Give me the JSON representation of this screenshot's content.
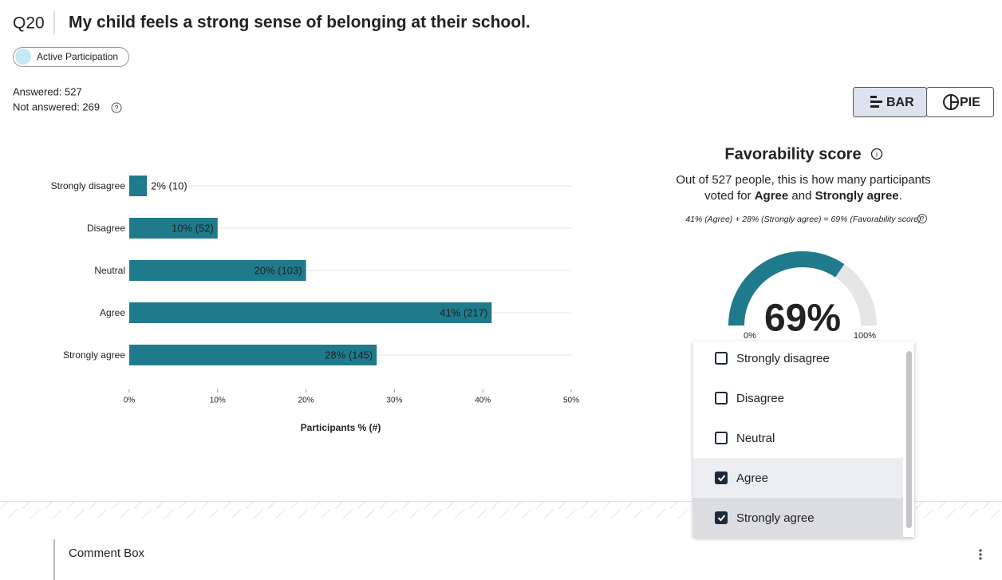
{
  "question": {
    "number": "Q20",
    "text": "My child feels a strong sense of belonging at their school."
  },
  "tag": "Active Participation",
  "answered": "Answered: 527",
  "not_answered": "Not answered: 269",
  "view_toggle": [
    "BAR",
    "PIE"
  ],
  "chart_data": {
    "type": "bar",
    "orientation": "horizontal",
    "categories": [
      "Strongly disagree",
      "Disagree",
      "Neutral",
      "Agree",
      "Strongly agree"
    ],
    "values": [
      2,
      10,
      20,
      41,
      28
    ],
    "value_labels": [
      "2% (10)",
      "10% (52)",
      "20% (103)",
      "41% (217)",
      "28% (145)"
    ],
    "color": "#1f7a8c",
    "xlim": [
      0,
      50
    ],
    "xticks": [
      {
        "value": 0,
        "label": "0%"
      },
      {
        "value": 10,
        "label": "10%"
      },
      {
        "value": 20,
        "label": "20%"
      },
      {
        "value": 30,
        "label": "30%"
      },
      {
        "value": 40,
        "label": "40%"
      },
      {
        "value": 50,
        "label": "50%"
      }
    ],
    "xlabel": "Participants % (#)"
  },
  "favorability": {
    "title": "Favorability score",
    "description": [
      [
        {
          "text": "Out of 527 people, this is how many participants",
          "bold": false
        }
      ],
      [
        {
          "text": "voted for ",
          "bold": false
        },
        {
          "text": "Agree",
          "bold": true
        },
        {
          "text": " and ",
          "bold": false
        },
        {
          "text": "Strongly agree",
          "bold": true
        },
        {
          "text": ".",
          "bold": false
        }
      ]
    ],
    "formula": "41% (Agree) + 28% (Strongly agree) = 69% (Favorability score)",
    "gauge": {
      "value": 69,
      "value_label": "69%",
      "range": [
        0,
        100
      ],
      "ticks": [
        {
          "value": 0,
          "label": "0%"
        },
        {
          "value": 100,
          "label": "100%"
        }
      ],
      "color": "#1f7a8c",
      "track_color": "#e6e6e6"
    }
  },
  "options": [
    {
      "label": "Strongly disagree",
      "checked": false
    },
    {
      "label": "Disagree",
      "checked": false
    },
    {
      "label": "Neutral",
      "checked": false
    },
    {
      "label": "Agree",
      "checked": true
    },
    {
      "label": "Strongly agree",
      "checked": true
    }
  ],
  "comment_box": "Comment Box"
}
